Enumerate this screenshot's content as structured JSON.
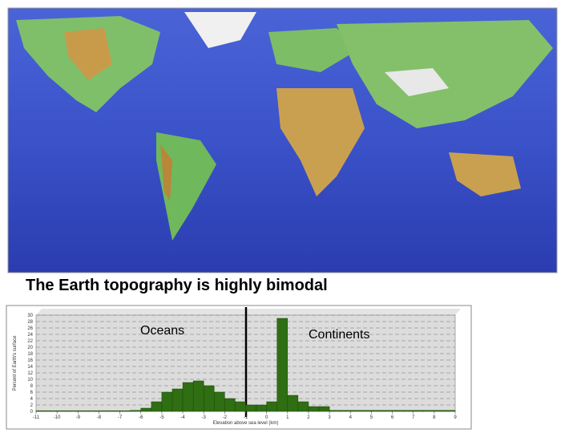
{
  "slide": {
    "title": "The Earth topography is highly bimodal"
  },
  "chart_data": {
    "type": "histogram",
    "bins": [
      -11,
      -10.5,
      -10,
      -9.5,
      -9,
      -8.5,
      -8,
      -7.5,
      -7,
      -6.5,
      -6,
      -5.5,
      -5,
      -4.5,
      -4,
      -3.5,
      -3,
      -2.5,
      -2,
      -1.5,
      -1,
      -0.5,
      0,
      0.5,
      1,
      1.5,
      2,
      2.5,
      3,
      3.5,
      4,
      4.5,
      5,
      5.5,
      6,
      6.5,
      7,
      7.5,
      8,
      8.5,
      9
    ],
    "values": [
      0.2,
      0.2,
      0.2,
      0.2,
      0.2,
      0.2,
      0.2,
      0.2,
      0.2,
      0.3,
      1,
      3,
      6,
      7,
      9,
      9.5,
      8,
      6,
      4,
      3,
      2,
      2,
      3,
      29,
      5,
      3,
      1.5,
      1.5,
      0.3,
      0.3,
      0.3,
      0.3,
      0.3,
      0.3,
      0.3,
      0.3,
      0.3,
      0.3,
      0.3,
      0.3
    ],
    "color": "#2f6e12",
    "xlim": [
      -11,
      9
    ],
    "ylim": [
      0,
      30
    ],
    "xticks": [
      -11,
      -10,
      -9,
      -8,
      -7,
      -6,
      -5,
      -4,
      -3,
      -2,
      -1,
      0,
      1,
      2,
      3,
      4,
      5,
      6,
      7,
      8,
      9
    ],
    "yticks": [
      0,
      2,
      4,
      6,
      8,
      10,
      12,
      14,
      16,
      18,
      20,
      22,
      24,
      26,
      28,
      30
    ],
    "x_label": "Elevation above sea level (km)",
    "y_label": "Percent of Earth's surface",
    "annotations": [
      "Oceans",
      "Continents"
    ],
    "grid": true
  }
}
